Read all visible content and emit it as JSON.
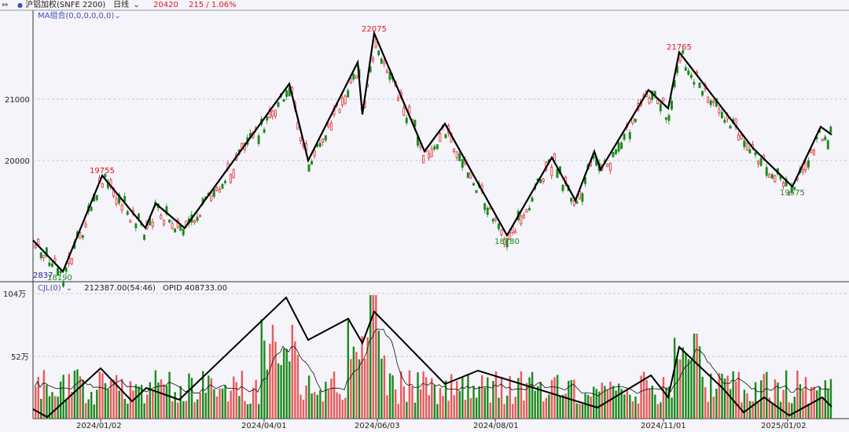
{
  "header": {
    "nav_icon": "double-arrow-icon",
    "title": "沪铝加权(SNFE 2200)",
    "period": "日线",
    "price": "20420",
    "change": "215 / 1.06%",
    "colors": {
      "up": "#e0151c",
      "down": "#1a8a1a",
      "link": "#3d4fb8"
    }
  },
  "price_panel": {
    "indicator_label": "MA组合(0,0,0,0,0,0)",
    "y_ticks": [
      "21000",
      "20000"
    ],
    "high_labels": [
      "19755",
      "22075",
      "21765"
    ],
    "low_labels": [
      "18190",
      "18780",
      "19575"
    ],
    "left_marker": "2837"
  },
  "volume_panel": {
    "indicator_label": "CJL(0)",
    "volume_value": "212387.00(54:46)",
    "opid": "OPID 408733.00",
    "y_ticks": [
      "104万",
      "52万"
    ]
  },
  "x_axis": {
    "dates": [
      "2024/01/02",
      "2024/04/01",
      "2024/06/03",
      "2024/08/01",
      "2024/11/01",
      "2025/01/02"
    ]
  },
  "chart_data": {
    "type": "candlestick",
    "zigzag_pivots_price": [
      {
        "x": "start",
        "y": 18700
      },
      {
        "x": "2023/12",
        "y": 18190
      },
      {
        "x": "2024/01",
        "y": 19755
      },
      {
        "x": "2024/02",
        "y": 18900
      },
      {
        "x": "2024/02",
        "y": 19300
      },
      {
        "x": "2024/03",
        "y": 18900
      },
      {
        "x": "2024/04",
        "y": 21250
      },
      {
        "x": "2024/04",
        "y": 20000
      },
      {
        "x": "2024/05",
        "y": 21600
      },
      {
        "x": "2024/05",
        "y": 20750
      },
      {
        "x": "2024/06",
        "y": 22075
      },
      {
        "x": "2024/07",
        "y": 20150
      },
      {
        "x": "2024/07",
        "y": 20600
      },
      {
        "x": "2024/08",
        "y": 18780
      },
      {
        "x": "2024/08",
        "y": 20050
      },
      {
        "x": "2024/09",
        "y": 19350
      },
      {
        "x": "2024/09",
        "y": 20150
      },
      {
        "x": "2024/09",
        "y": 19850
      },
      {
        "x": "2024/10",
        "y": 21150
      },
      {
        "x": "2024/10",
        "y": 20850
      },
      {
        "x": "2024/11",
        "y": 21765
      },
      {
        "x": "2024/12",
        "y": 20200
      },
      {
        "x": "2025/01",
        "y": 19575
      },
      {
        "x": "2025/01",
        "y": 20550
      },
      {
        "x": "end",
        "y": 20420
      }
    ],
    "price_axis": {
      "ticks": [
        21000,
        20000
      ]
    },
    "volume_axis": {
      "ticks_label": [
        "104万",
        "52万"
      ],
      "max": 1040000
    }
  }
}
